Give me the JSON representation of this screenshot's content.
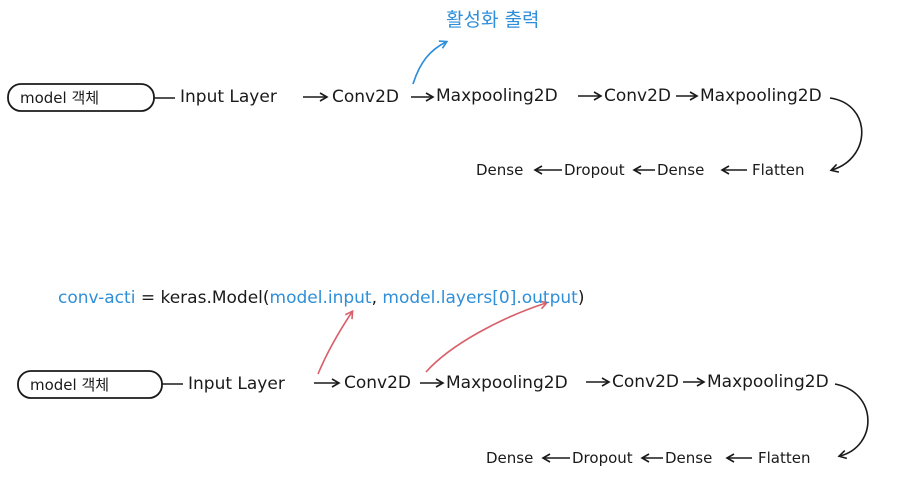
{
  "diagram1": {
    "annotation": "활성화 출력",
    "start_node": "model 객체",
    "row1": [
      "Input Layer",
      "Conv2D",
      "Maxpooling2D",
      "Conv2D",
      "Maxpooling2D"
    ],
    "row2": [
      "Dense",
      "Dropout",
      "Dense",
      "Flatten"
    ]
  },
  "code_line": {
    "var_name": "conv-acti",
    "equals": "=",
    "call": "keras.Model(",
    "arg1": "model.input",
    "comma": ",",
    "arg2": "model.layers[0].output",
    "close": ")"
  },
  "diagram2": {
    "start_node": "model 객체",
    "row1": [
      "Input Layer",
      "Conv2D",
      "Maxpooling2D",
      "Conv2D",
      "Maxpooling2D"
    ],
    "row2": [
      "Dense",
      "Dropout",
      "Dense",
      "Flatten"
    ]
  },
  "colors": {
    "ink": "#1a1a1a",
    "blue": "#2f8fd8",
    "red": "#d9606a"
  }
}
